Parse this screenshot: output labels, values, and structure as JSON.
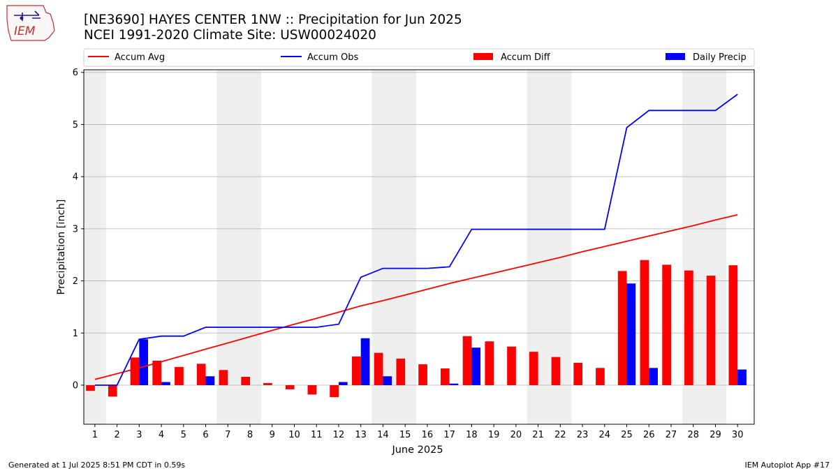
{
  "header": {
    "title_line1": "[NE3690] HAYES CENTER 1NW :: Precipitation for Jun 2025",
    "title_line2": "NCEI 1991-2020 Climate Site: USW00024020",
    "logo_text": "IEM"
  },
  "footer": {
    "generated": "Generated at 1 Jul 2025 8:51 PM CDT in 0.59s",
    "app": "IEM Autoplot App #17"
  },
  "colors": {
    "avg": "#ff0000",
    "obs": "#0000ff",
    "diff": "#ff0000",
    "daily": "#0000ff",
    "weekend_shade": "#eeeeee",
    "grid": "#b0b0b0"
  },
  "chart_data": {
    "type": "bar",
    "xlabel": "June 2025",
    "ylabel": "Precipitation [inch]",
    "ylim": [
      -0.75,
      6.05
    ],
    "yticks": [
      0,
      1,
      2,
      3,
      4,
      5,
      6
    ],
    "grid": "horizontal",
    "legend_placement": "top",
    "legend": [
      "Accum Avg",
      "Accum Obs",
      "Accum Diff",
      "Daily Precip"
    ],
    "days": [
      1,
      2,
      3,
      4,
      5,
      6,
      7,
      8,
      9,
      10,
      11,
      12,
      13,
      14,
      15,
      16,
      17,
      18,
      19,
      20,
      21,
      22,
      23,
      24,
      25,
      26,
      27,
      28,
      29,
      30
    ],
    "weekend_days": [
      1,
      7,
      8,
      14,
      15,
      21,
      22,
      28,
      29
    ],
    "series": [
      {
        "name": "Accum Avg",
        "kind": "line",
        "values": [
          0.11,
          0.22,
          0.33,
          0.45,
          0.57,
          0.69,
          0.81,
          0.93,
          1.05,
          1.17,
          1.28,
          1.4,
          1.52,
          1.62,
          1.73,
          1.84,
          1.95,
          2.05,
          2.15,
          2.25,
          2.35,
          2.45,
          2.56,
          2.66,
          2.76,
          2.86,
          2.96,
          3.06,
          3.17,
          3.27
        ]
      },
      {
        "name": "Accum Obs",
        "kind": "line",
        "values": [
          0.0,
          0.0,
          0.88,
          0.94,
          0.94,
          1.11,
          1.11,
          1.11,
          1.11,
          1.11,
          1.11,
          1.17,
          2.07,
          2.24,
          2.24,
          2.24,
          2.27,
          2.99,
          2.99,
          2.99,
          2.99,
          2.99,
          2.99,
          2.99,
          4.94,
          5.27,
          5.27,
          5.27,
          5.27,
          5.58
        ]
      },
      {
        "name": "Accum Diff",
        "kind": "bar",
        "values": [
          -0.11,
          -0.22,
          0.53,
          0.47,
          0.35,
          0.41,
          0.29,
          0.16,
          0.04,
          -0.08,
          -0.18,
          -0.23,
          0.55,
          0.62,
          0.51,
          0.4,
          0.32,
          0.94,
          0.84,
          0.74,
          0.64,
          0.54,
          0.43,
          0.33,
          2.19,
          2.4,
          2.31,
          2.2,
          2.1,
          2.3
        ]
      },
      {
        "name": "Daily Precip",
        "kind": "bar",
        "values": [
          0.0,
          0.0,
          0.88,
          0.06,
          0.0,
          0.17,
          0.0,
          0.0,
          0.0,
          0.0,
          0.0,
          0.06,
          0.9,
          0.17,
          0.0,
          0.0,
          0.03,
          0.72,
          0.0,
          0.0,
          0.0,
          0.0,
          0.0,
          0.0,
          1.95,
          0.33,
          0.0,
          0.0,
          0.0,
          0.3
        ]
      }
    ]
  }
}
